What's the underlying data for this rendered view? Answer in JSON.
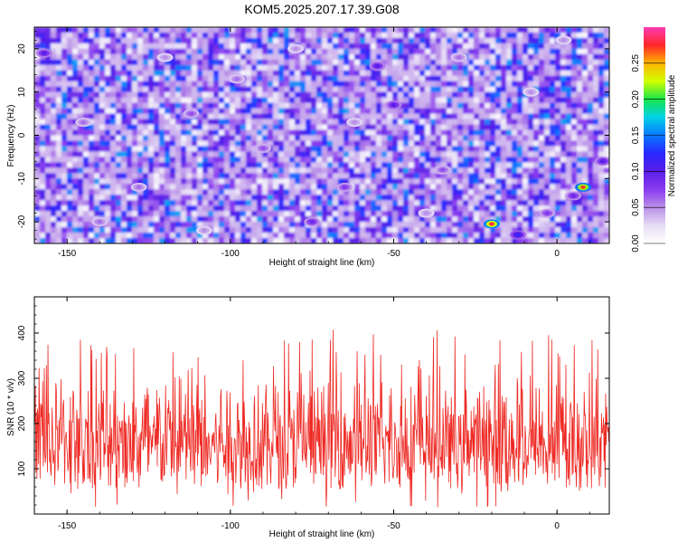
{
  "title": "KOM5.2025.207.17.39.G08",
  "colors": {
    "snr_line": "#ee2a24",
    "colormap": [
      "#ffffff",
      "#e6dcf5",
      "#b98fe8",
      "#8a3cf0",
      "#5a1ee6",
      "#2828ff",
      "#0a78ff",
      "#00d2e6",
      "#18e64a",
      "#d2ff00",
      "#ffb400",
      "#ff2828",
      "#ff3cb4"
    ]
  },
  "chart_data": [
    {
      "type": "heatmap",
      "title": "KOM5.2025.207.17.39.G08",
      "xlabel": "Height of straight line (km)",
      "ylabel": "Frequency (Hz)",
      "xlim": [
        -160,
        16
      ],
      "ylim": [
        -25,
        25
      ],
      "x_ticks": [
        -150,
        -100,
        -50,
        0
      ],
      "y_ticks": [
        -20,
        -10,
        0,
        10,
        20
      ],
      "colorbar": {
        "label": "Normalized spectral amplitude",
        "range": [
          0,
          0.3
        ],
        "ticks": [
          "0.00",
          "0.05",
          "0.10",
          "0.15",
          "0.20",
          "0.25"
        ]
      },
      "hotspots": [
        {
          "x": -20,
          "y": -20.5,
          "value": 0.28
        },
        {
          "x": 8,
          "y": -12,
          "value": 0.27
        },
        {
          "x": 14,
          "y": -6,
          "value": 0.1
        },
        {
          "x": 5,
          "y": -14,
          "value": 0.09
        },
        {
          "x": -12,
          "y": -23,
          "value": 0.12
        },
        {
          "x": -3,
          "y": -18,
          "value": 0.08
        },
        {
          "x": -55,
          "y": 16,
          "value": 0.1
        },
        {
          "x": -50,
          "y": 7,
          "value": 0.1
        },
        {
          "x": -65,
          "y": -12,
          "value": 0.08
        },
        {
          "x": -157,
          "y": 19,
          "value": 0.1
        },
        {
          "x": -112,
          "y": 5,
          "value": 0.07
        },
        {
          "x": -90,
          "y": -3,
          "value": 0.07
        },
        {
          "x": -75,
          "y": -20,
          "value": 0.09
        },
        {
          "x": -35,
          "y": -8,
          "value": 0.07
        },
        {
          "x": -145,
          "y": 3,
          "value": 0.06
        },
        {
          "x": -128,
          "y": -12,
          "value": 0.06
        },
        {
          "x": -98,
          "y": 13,
          "value": 0.06
        },
        {
          "x": -30,
          "y": 18,
          "value": 0.06
        },
        {
          "x": 2,
          "y": 22,
          "value": 0.05
        },
        {
          "x": -80,
          "y": 20,
          "value": 0.05
        },
        {
          "x": -140,
          "y": -20,
          "value": 0.06
        },
        {
          "x": -40,
          "y": -18,
          "value": 0.05
        },
        {
          "x": -108,
          "y": -22,
          "value": 0.05
        },
        {
          "x": -120,
          "y": 18,
          "value": 0.05
        },
        {
          "x": -62,
          "y": 3,
          "value": 0.05
        },
        {
          "x": -8,
          "y": 10,
          "value": 0.05
        }
      ]
    },
    {
      "type": "line",
      "xlabel": "Height of straight line (km)",
      "ylabel": "SNR (10 * v/v)",
      "xlim": [
        -160,
        16
      ],
      "ylim": [
        0,
        480
      ],
      "x_ticks": [
        -150,
        -100,
        -50,
        0
      ],
      "y_ticks": [
        100,
        200,
        300,
        400
      ],
      "noise_model": {
        "mean": 140,
        "spread_low": 15,
        "spread_high": 480,
        "samples": 1100
      }
    }
  ]
}
